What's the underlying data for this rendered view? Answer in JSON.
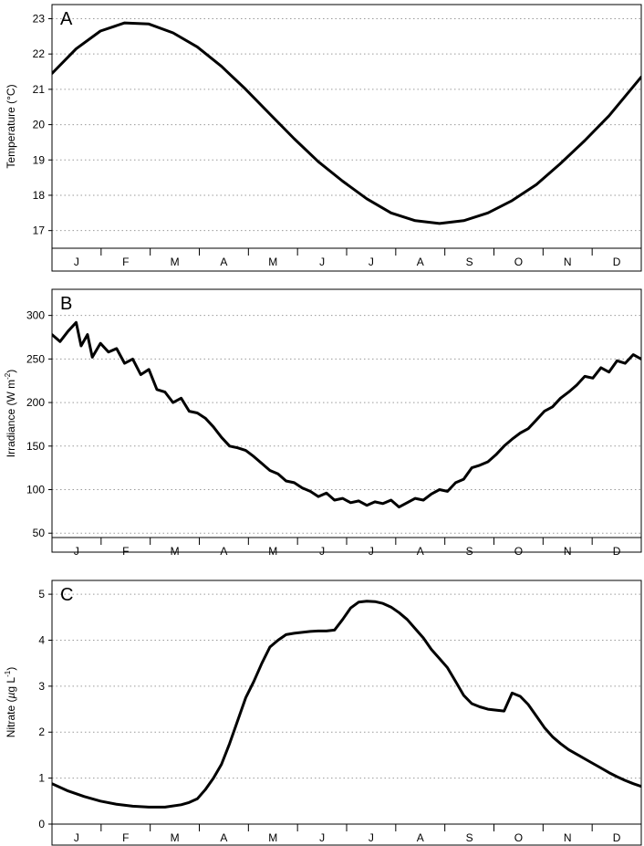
{
  "colors": {
    "line": "#000000",
    "grid": "#9a9a9a",
    "background": "#ffffff"
  },
  "chart_data": [
    {
      "type": "line",
      "panel_label": "A",
      "ylabel": "Temperature (°C)",
      "ylim": [
        16.5,
        23.4
      ],
      "yticks": [
        17,
        18,
        19,
        20,
        21,
        22,
        23
      ],
      "months": [
        "J",
        "F",
        "M",
        "A",
        "M",
        "J",
        "J",
        "A",
        "S",
        "O",
        "N",
        "D"
      ],
      "xlim": [
        0,
        365
      ],
      "grid": "horizontal dotted",
      "series": [
        {
          "x": [
            0,
            15,
            30,
            45,
            60,
            75,
            90,
            105,
            120,
            135,
            150,
            165,
            180,
            195,
            210,
            225,
            240,
            255,
            270,
            285,
            300,
            315,
            330,
            345,
            365
          ],
          "y": [
            21.45,
            22.15,
            22.65,
            22.88,
            22.85,
            22.6,
            22.2,
            21.65,
            21.0,
            20.3,
            19.6,
            18.95,
            18.4,
            17.9,
            17.5,
            17.28,
            17.2,
            17.28,
            17.5,
            17.85,
            18.3,
            18.9,
            19.55,
            20.25,
            21.35
          ]
        }
      ]
    },
    {
      "type": "line",
      "panel_label": "B",
      "ylabel": "Irradiance (W m",
      "ylabel_sup": "-2",
      "ylabel_end": ")",
      "ylim": [
        45,
        330
      ],
      "yticks": [
        50,
        100,
        150,
        200,
        250,
        300
      ],
      "months": [
        "J",
        "F",
        "M",
        "A",
        "M",
        "J",
        "J",
        "A",
        "S",
        "O",
        "N",
        "D"
      ],
      "xlim": [
        0,
        365
      ],
      "grid": "horizontal dotted",
      "series": [
        {
          "x": [
            0,
            5,
            10,
            15,
            18,
            22,
            25,
            30,
            35,
            40,
            45,
            50,
            55,
            60,
            65,
            70,
            75,
            80,
            85,
            90,
            95,
            100,
            105,
            110,
            115,
            120,
            125,
            130,
            135,
            140,
            145,
            150,
            155,
            160,
            165,
            170,
            175,
            180,
            185,
            190,
            195,
            200,
            205,
            210,
            215,
            220,
            225,
            230,
            235,
            240,
            245,
            250,
            255,
            260,
            265,
            270,
            275,
            280,
            285,
            290,
            295,
            300,
            305,
            310,
            315,
            320,
            325,
            330,
            335,
            340,
            345,
            350,
            355,
            360,
            365
          ],
          "y": [
            278,
            270,
            282,
            292,
            265,
            278,
            252,
            268,
            258,
            262,
            245,
            250,
            232,
            238,
            215,
            212,
            200,
            205,
            190,
            188,
            182,
            172,
            160,
            150,
            148,
            145,
            138,
            130,
            122,
            118,
            110,
            108,
            102,
            98,
            92,
            96,
            88,
            90,
            85,
            87,
            82,
            86,
            84,
            88,
            80,
            85,
            90,
            88,
            95,
            100,
            98,
            108,
            112,
            125,
            128,
            132,
            140,
            150,
            158,
            165,
            170,
            180,
            190,
            195,
            205,
            212,
            220,
            230,
            228,
            240,
            235,
            248,
            245,
            255,
            250
          ]
        }
      ]
    },
    {
      "type": "line",
      "panel_label": "C",
      "ylabel": "Nitrate (",
      "ylabel_mu": "µ",
      "ylabel_mid": "g L",
      "ylabel_sup": "-1",
      "ylabel_end": ")",
      "ylim": [
        0,
        5.3
      ],
      "yticks": [
        0,
        1,
        2,
        3,
        4,
        5
      ],
      "months": [
        "J",
        "F",
        "M",
        "A",
        "M",
        "J",
        "J",
        "A",
        "S",
        "O",
        "N",
        "D"
      ],
      "xlim": [
        0,
        365
      ],
      "grid": "horizontal dotted",
      "series": [
        {
          "x": [
            0,
            10,
            20,
            30,
            40,
            50,
            60,
            70,
            80,
            85,
            90,
            95,
            100,
            105,
            110,
            115,
            120,
            125,
            130,
            135,
            140,
            145,
            150,
            155,
            160,
            165,
            170,
            175,
            180,
            185,
            190,
            195,
            200,
            205,
            210,
            215,
            220,
            225,
            230,
            235,
            240,
            245,
            250,
            255,
            260,
            265,
            270,
            275,
            280,
            285,
            290,
            295,
            300,
            305,
            310,
            315,
            320,
            325,
            330,
            335,
            340,
            345,
            350,
            355,
            360,
            365
          ],
          "y": [
            0.88,
            0.72,
            0.6,
            0.5,
            0.43,
            0.39,
            0.37,
            0.37,
            0.42,
            0.47,
            0.55,
            0.75,
            1.0,
            1.3,
            1.75,
            2.25,
            2.75,
            3.1,
            3.5,
            3.85,
            4.0,
            4.12,
            4.15,
            4.17,
            4.19,
            4.2,
            4.2,
            4.22,
            4.45,
            4.7,
            4.83,
            4.85,
            4.84,
            4.8,
            4.72,
            4.6,
            4.45,
            4.25,
            4.05,
            3.8,
            3.6,
            3.4,
            3.1,
            2.8,
            2.62,
            2.55,
            2.5,
            2.48,
            2.46,
            2.85,
            2.78,
            2.6,
            2.35,
            2.1,
            1.9,
            1.75,
            1.62,
            1.52,
            1.42,
            1.32,
            1.22,
            1.12,
            1.03,
            0.95,
            0.88,
            0.82
          ]
        }
      ]
    }
  ]
}
